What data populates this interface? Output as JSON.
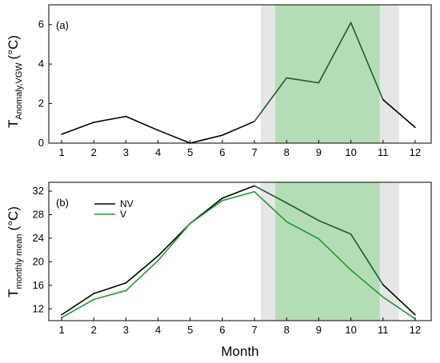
{
  "chart_data": [
    {
      "panel_label": "(a)",
      "type": "line",
      "ylabel_main": "T",
      "ylabel_sub": "Anomaly,VGW",
      "ylabel_unit": "(°C)",
      "xlim": [
        0.6,
        12.5
      ],
      "ylim": [
        0,
        7
      ],
      "xticks": [
        1,
        2,
        3,
        4,
        5,
        6,
        7,
        8,
        9,
        10,
        11,
        12
      ],
      "yticks": [
        0,
        2,
        4,
        6
      ],
      "shaded_gray": [
        7.2,
        11.5
      ],
      "shaded_green": [
        7.65,
        10.9
      ],
      "colors": {
        "gray_band": "#e6e6e6",
        "green_band": "#b5ddb5"
      },
      "series": [
        {
          "color": "#000000",
          "highlight_color": "#1a5c2a",
          "x": [
            1,
            2,
            3,
            4,
            5,
            6,
            7,
            8,
            9,
            10,
            11,
            12
          ],
          "values": [
            0.45,
            1.05,
            1.35,
            0.65,
            0.0,
            0.4,
            1.1,
            3.3,
            3.05,
            6.1,
            2.2,
            0.8
          ]
        }
      ]
    },
    {
      "panel_label": "(b)",
      "type": "line",
      "ylabel_main": "T",
      "ylabel_sub": "monthly mean",
      "ylabel_unit": "(°C)",
      "xlabel": "Month",
      "xlim": [
        0.6,
        12.5
      ],
      "ylim": [
        10,
        33.5
      ],
      "xticks": [
        1,
        2,
        3,
        4,
        5,
        6,
        7,
        8,
        9,
        10,
        11,
        12
      ],
      "yticks": [
        12,
        16,
        20,
        24,
        28,
        32
      ],
      "shaded_gray": [
        7.2,
        11.5
      ],
      "shaded_green": [
        7.65,
        10.9
      ],
      "colors": {
        "gray_band": "#e6e6e6",
        "green_band": "#b5ddb5"
      },
      "legend_position": "top-left",
      "series": [
        {
          "name": "NV",
          "color": "#000000",
          "highlight_color": "#1a5c2a",
          "x": [
            1,
            2,
            3,
            4,
            5,
            6,
            7,
            8,
            9,
            10,
            11,
            12
          ],
          "values": [
            11.0,
            14.6,
            16.4,
            21.0,
            26.5,
            30.8,
            32.9,
            30.0,
            27.0,
            24.7,
            16.1,
            11.0
          ]
        },
        {
          "name": "V",
          "color": "#1e9a2a",
          "x": [
            1,
            2,
            3,
            4,
            5,
            6,
            7,
            8,
            9,
            10,
            11,
            12
          ],
          "values": [
            10.5,
            13.6,
            15.1,
            20.2,
            26.5,
            30.4,
            31.9,
            26.8,
            23.9,
            18.6,
            14.0,
            10.3
          ]
        }
      ]
    }
  ]
}
